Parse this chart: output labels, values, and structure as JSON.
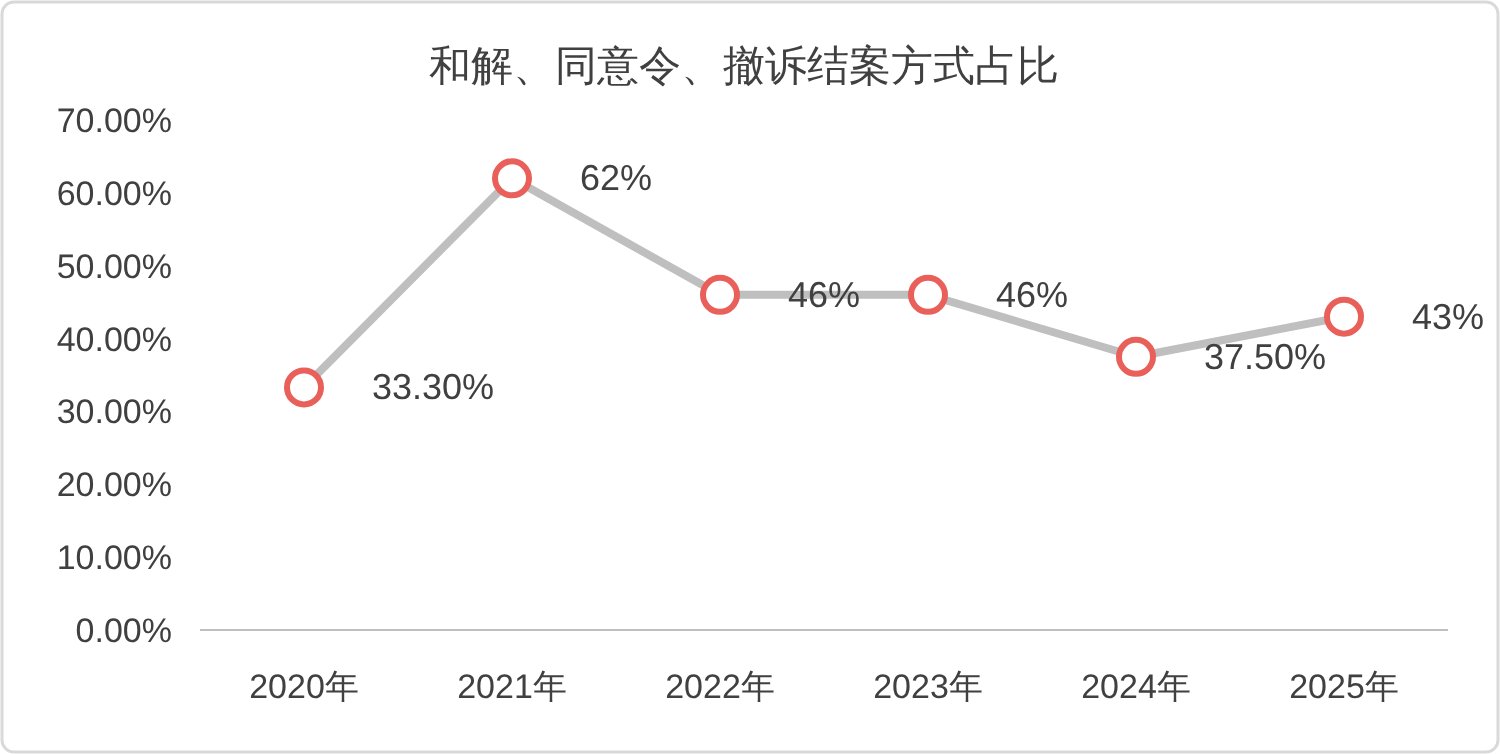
{
  "chart_data": {
    "type": "line",
    "title": "和解、同意令、撤诉结案方式占比",
    "categories": [
      "2020年",
      "2021年",
      "2022年",
      "2023年",
      "2024年",
      "2025年"
    ],
    "series": [
      {
        "color": "#bfbfbf",
        "colors": [
          "#e9605b",
          "#e9605b",
          "#e9605b",
          "#e9605b",
          "#e9605b",
          "#e9605b"
        ],
        "values": [
          33.3,
          62,
          46,
          46,
          37.5,
          43
        ],
        "value_labels": [
          "33.30%",
          "62%",
          "46%",
          "46%",
          "37.50%",
          "43%"
        ]
      }
    ],
    "ylim": [
      0,
      70
    ],
    "yticks": [
      {
        "value": 0,
        "label": "0.00%"
      },
      {
        "value": 10,
        "label": "10.00%"
      },
      {
        "value": 20,
        "label": "20.00%"
      },
      {
        "value": 30,
        "label": "30.00%"
      },
      {
        "value": 40,
        "label": "40.00%"
      },
      {
        "value": 50,
        "label": "50.00%"
      },
      {
        "value": 60,
        "label": "60.00%"
      },
      {
        "value": 70,
        "label": "70.00%"
      }
    ],
    "marker": "circle",
    "line_style": "solid",
    "grid": false
  }
}
